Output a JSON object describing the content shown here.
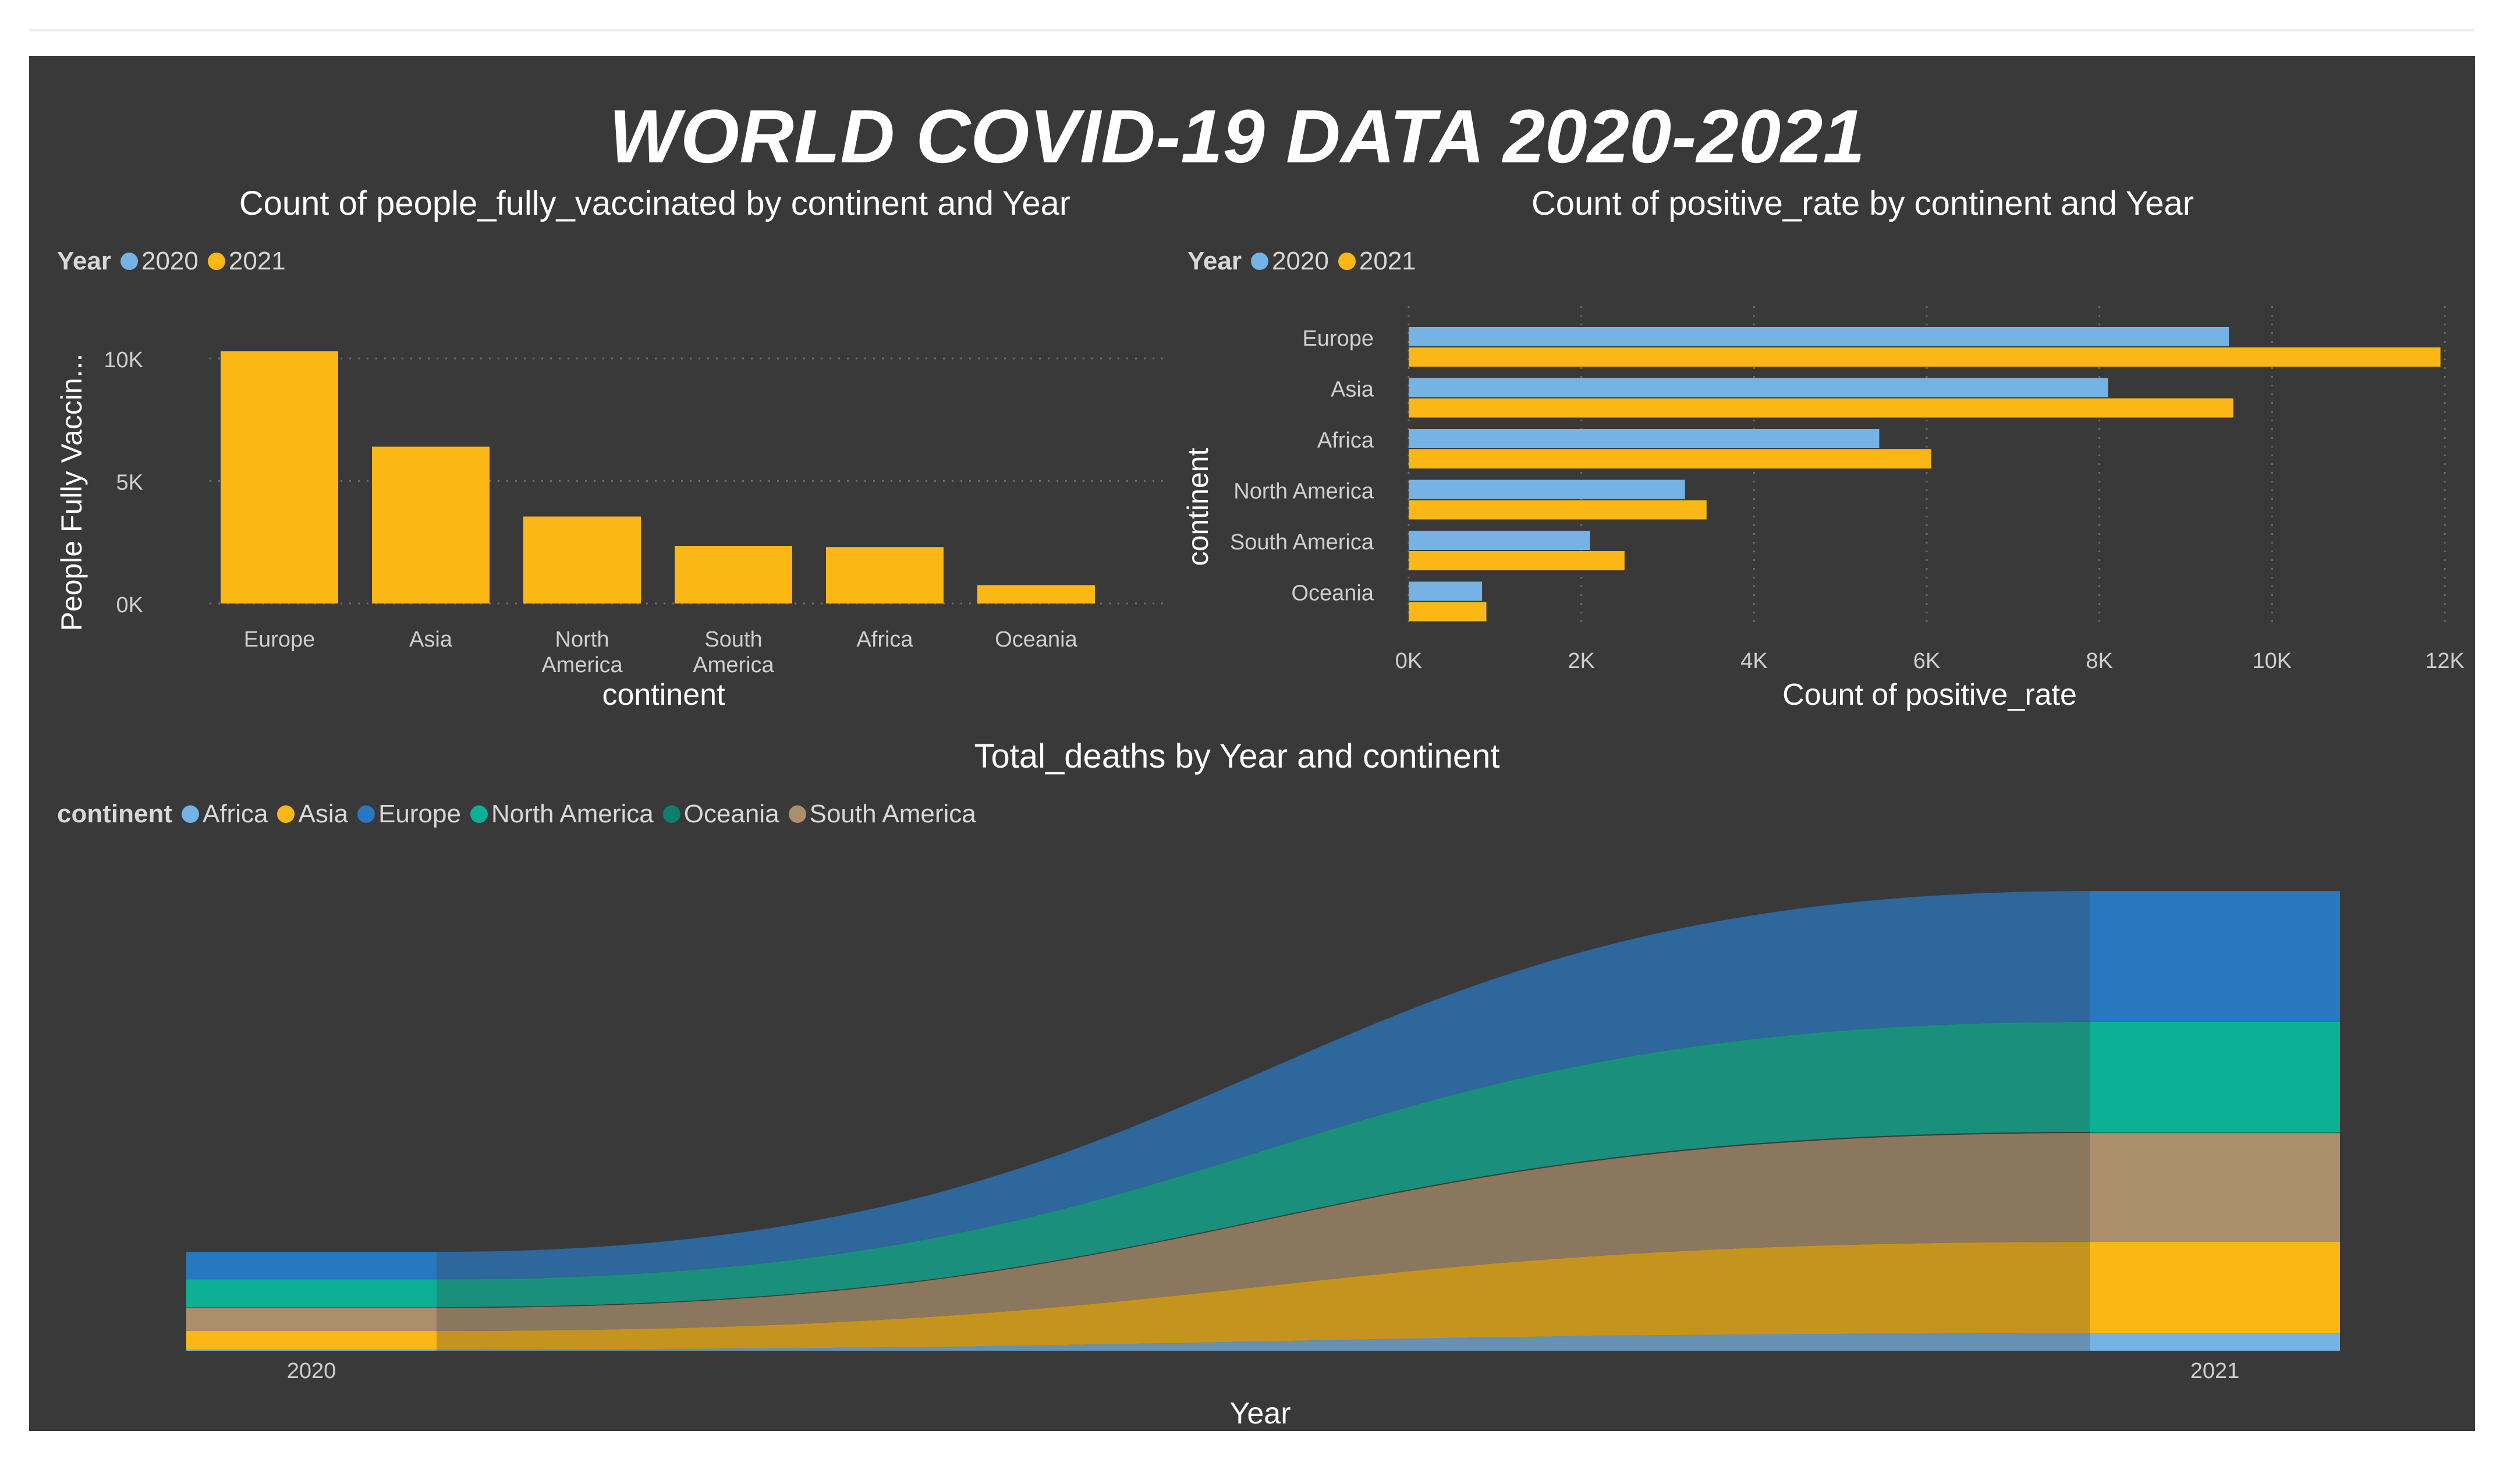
{
  "dashboard_title": "WORLD COVID-19 DATA 2020-2021",
  "colors": {
    "background": "#393939",
    "year_2020": "#74b3e3",
    "year_2021": "#fbb715"
  },
  "legends": {
    "year": {
      "title": "Year",
      "items": [
        {
          "label": "2020",
          "color": "#74b3e3"
        },
        {
          "label": "2021",
          "color": "#fbb715"
        }
      ]
    },
    "continent": {
      "title": "continent",
      "items": [
        {
          "label": "Africa",
          "color": "#74b3e3"
        },
        {
          "label": "Asia",
          "color": "#fbb715"
        },
        {
          "label": "Europe",
          "color": "#2878c0"
        },
        {
          "label": "North America",
          "color": "#0eb095"
        },
        {
          "label": "Oceania",
          "color": "#0f7f6c"
        },
        {
          "label": "South America",
          "color": "#ab8f6c"
        }
      ]
    }
  },
  "chart_data": [
    {
      "type": "bar",
      "title": "Count of people_fully_vaccinated by continent and Year",
      "xlabel": "continent",
      "ylabel": "People Fully Vaccin...",
      "categories": [
        "Europe",
        "Asia",
        "North America",
        "South America",
        "Africa",
        "Oceania"
      ],
      "yticks": [
        "0K",
        "5K",
        "10K"
      ],
      "ylim": [
        0,
        12000
      ],
      "series": [
        {
          "name": "2021",
          "color": "#fbb715",
          "values": [
            10300,
            6400,
            3550,
            2350,
            2300,
            750
          ]
        }
      ],
      "legend": "top-left",
      "grid": true
    },
    {
      "type": "bar",
      "orientation": "horizontal",
      "title": "Count of positive_rate by continent and Year",
      "xlabel": "Count of positive_rate",
      "ylabel": "continent",
      "categories": [
        "Europe",
        "Asia",
        "Africa",
        "North America",
        "South America",
        "Oceania"
      ],
      "xticks": [
        "0K",
        "2K",
        "4K",
        "6K",
        "8K",
        "10K",
        "12K"
      ],
      "xlim": [
        0,
        12000
      ],
      "series": [
        {
          "name": "2020",
          "color": "#74b3e3",
          "values": [
            9500,
            8100,
            5450,
            3200,
            2100,
            850
          ]
        },
        {
          "name": "2021",
          "color": "#fbb715",
          "values": [
            11950,
            9550,
            6050,
            3450,
            2500,
            900
          ]
        }
      ],
      "legend": "top-left",
      "grid": true
    },
    {
      "type": "area",
      "subtype": "ribbon",
      "title": "Total_deaths by Year and continent",
      "xlabel": "Year",
      "x": [
        "2020",
        "2021"
      ],
      "stack_order_bottom_to_top": [
        "Africa",
        "Asia",
        "South America",
        "Oceania",
        "North America",
        "Europe"
      ],
      "series": [
        {
          "name": "Africa",
          "color": "#74b3e3",
          "values": [
            3,
            42
          ]
        },
        {
          "name": "Asia",
          "color": "#fbb715",
          "values": [
            40,
            220
          ]
        },
        {
          "name": "Europe",
          "color": "#2878c0",
          "values": [
            60,
            315
          ]
        },
        {
          "name": "North America",
          "color": "#0eb095",
          "values": [
            60,
            265
          ]
        },
        {
          "name": "Oceania",
          "color": "#0f7f6c",
          "values": [
            2,
            3
          ]
        },
        {
          "name": "South America",
          "color": "#ab8f6c",
          "values": [
            50,
            262
          ]
        }
      ],
      "legend": "top-left"
    }
  ]
}
